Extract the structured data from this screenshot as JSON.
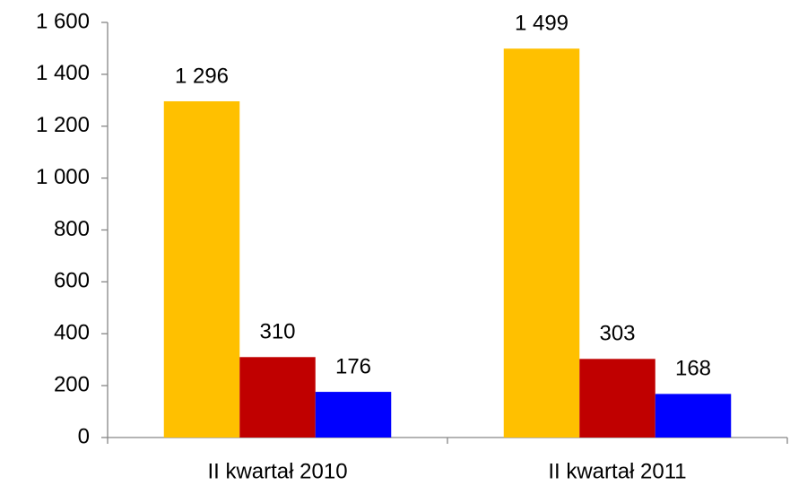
{
  "chart_data": {
    "type": "bar",
    "categories": [
      "II kwartał 2010",
      "II kwartał 2011"
    ],
    "series": [
      {
        "color": "#FFC000",
        "values": [
          1296,
          1499
        ],
        "value_labels": [
          "1 296",
          "1 499"
        ]
      },
      {
        "color": "#C00000",
        "values": [
          310,
          303
        ]
      },
      {
        "color": "#0000FF",
        "values": [
          176,
          168
        ]
      }
    ],
    "ylim": [
      0,
      1600
    ],
    "yticks": [
      0,
      200,
      400,
      600,
      800,
      {
        "value": 1000,
        "label": "1 000"
      },
      {
        "value": 1200,
        "label": "1 200"
      },
      {
        "value": 1400,
        "label": "1 400"
      },
      {
        "value": 1600,
        "label": "1 600"
      }
    ],
    "grid": false
  }
}
